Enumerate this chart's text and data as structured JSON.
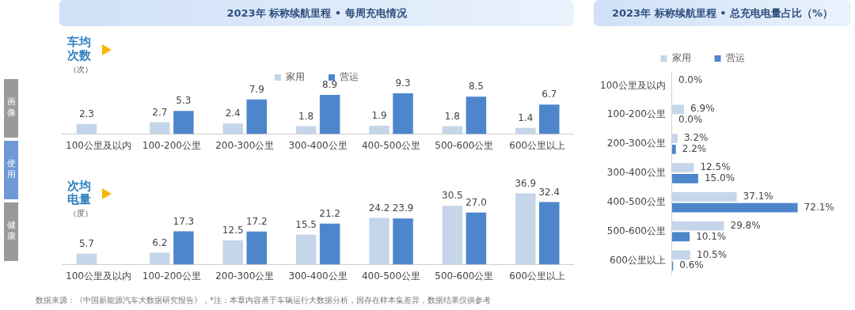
{
  "chart_data": [
    {
      "type": "other",
      "annotations": [
        "画像",
        "使用",
        "健康"
      ]
    },
    {
      "type": "bar",
      "title": "2023年 标称续航里程 • 每周充电情况",
      "ylabel": "车均次数（次）",
      "legend": "top",
      "categories": [
        "100公里及以内",
        "100-200公里",
        "200-300公里",
        "300-400公里",
        "400-500公里",
        "500-600公里",
        "600公里以上"
      ],
      "series": [
        {
          "name": "家用",
          "color": "#c5d6ea",
          "values": [
            2.3,
            2.7,
            2.4,
            1.8,
            1.9,
            1.8,
            1.4
          ],
          "value_labels": [
            "2.3",
            "2.7",
            "2.4",
            "1.8",
            "1.9",
            "1.8",
            "1.4"
          ]
        },
        {
          "name": "营运",
          "color": "#4e86cc",
          "values": [
            null,
            5.3,
            7.9,
            8.9,
            9.3,
            8.5,
            6.7
          ],
          "value_labels": [
            null,
            "5.3",
            "7.9",
            "8.9",
            "9.3",
            "8.5",
            "6.7"
          ]
        }
      ]
    },
    {
      "type": "bar",
      "ylabel": "次均电量（度）",
      "annotations": [
        "数据来源：《中国新能源汽车大数据研究报告》，*注：本章内容基于车辆运行大数据分析，因存在样本集差异，数据结果仅供参考"
      ],
      "categories": [
        "100公里及以内",
        "100-200公里",
        "200-300公里",
        "300-400公里",
        "400-500公里",
        "500-600公里",
        "600公里以上"
      ],
      "series": [
        {
          "color": "#c5d6ea",
          "values": [
            5.7,
            6.2,
            12.5,
            15.5,
            24.2,
            30.5,
            36.9
          ],
          "value_labels": [
            "5.7",
            "6.2",
            "12.5",
            "15.5",
            "24.2",
            "30.5",
            "36.9"
          ]
        },
        {
          "color": "#4e86cc",
          "values": [
            null,
            17.3,
            17.2,
            21.2,
            23.9,
            27.0,
            32.4
          ],
          "value_labels": [
            null,
            "17.3",
            "17.2",
            "21.2",
            "23.9",
            "27.0",
            "32.4"
          ]
        }
      ]
    },
    {
      "type": "bar",
      "orientation": "horizontal",
      "title": "2023年 标称续航里程 • 总充电电量占比（%）",
      "legend": "top",
      "categories": [
        "100公里及以内",
        "100-200公里",
        "200-300公里",
        "300-400公里",
        "400-500公里",
        "500-600公里",
        "600公里以上"
      ],
      "series": [
        {
          "name": "家用",
          "color": "#c5d6ea",
          "values": [
            0.0,
            6.9,
            3.2,
            12.5,
            37.1,
            29.8,
            10.5
          ],
          "value_labels": [
            "0.0%",
            "6.9%",
            "3.2%",
            "12.5%",
            "37.1%",
            "29.8%",
            "10.5%"
          ]
        },
        {
          "name": "营运",
          "color": "#4e86cc",
          "values": [
            null,
            0.0,
            2.2,
            15.0,
            72.1,
            10.1,
            0.6
          ],
          "value_labels": [
            null,
            "0.0%",
            "2.2%",
            "15.0%",
            "72.1%",
            "10.1%",
            "0.6%"
          ]
        }
      ]
    }
  ]
}
